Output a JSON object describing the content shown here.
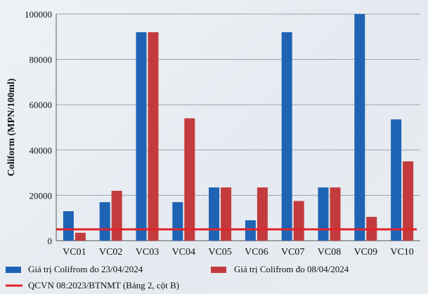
{
  "chart_data": {
    "type": "bar",
    "ylabel": "Coliform (MPN/100ml)",
    "xlabel": "",
    "ylim": [
      0,
      100000
    ],
    "yticks": [
      0,
      20000,
      40000,
      60000,
      80000,
      100000
    ],
    "grid": true,
    "legend_position": "bottom",
    "categories": [
      "VC01",
      "VC02",
      "VC03",
      "VC04",
      "VC05",
      "VC06",
      "VC07",
      "VC08",
      "VC09",
      "VC10"
    ],
    "series": [
      {
        "name": "Giá trị Colifrom đo 23/04/2024",
        "color": "#1f63b5",
        "values": [
          13000,
          17000,
          92000,
          17000,
          23500,
          9000,
          92000,
          23500,
          100000,
          53500
        ]
      },
      {
        "name": "Giá trị Colifrom đo 08/04/2024",
        "color": "#c43b3d",
        "values": [
          3500,
          22000,
          92000,
          54000,
          23500,
          23500,
          17500,
          23500,
          10500,
          35000
        ]
      }
    ],
    "reference_line": {
      "name": "QCVN 08:2023/BTNMT (Bảng 2, cột B)",
      "value": 5000,
      "color": "#e0242a"
    }
  }
}
